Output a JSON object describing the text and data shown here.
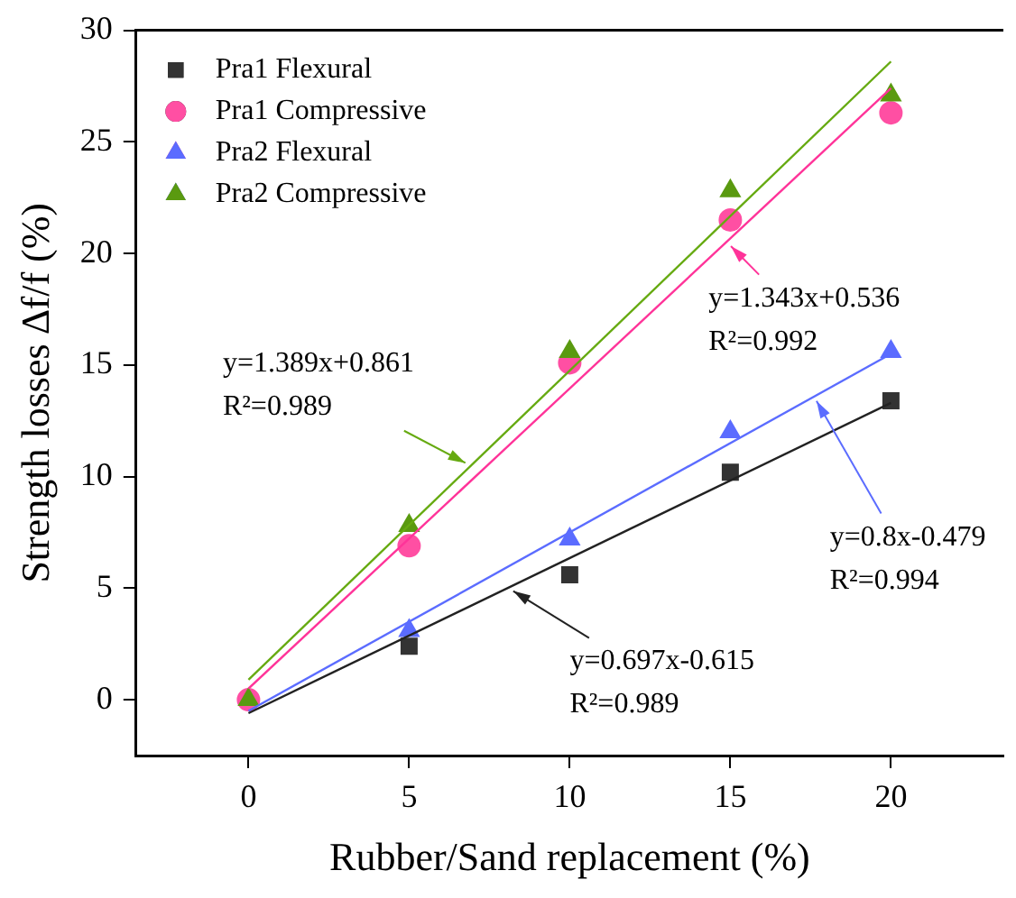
{
  "chart_data": {
    "type": "scatter",
    "xlabel": "Rubber/Sand replacement (%)",
    "ylabel": "Strength losses ∆f/f (%)",
    "xlim": [
      -3.5,
      23.5
    ],
    "xticks": [
      0,
      5,
      10,
      15,
      20
    ],
    "ylim": [
      -2.5,
      30
    ],
    "yticks": [
      0,
      5,
      10,
      15,
      20,
      25,
      30
    ],
    "grid": false,
    "legend": "top left",
    "series": [
      {
        "name": "Pra1 Flexural",
        "marker": "square",
        "color": "#333333",
        "x": [
          5,
          10,
          15,
          20
        ],
        "values": [
          2.4,
          5.6,
          10.2,
          13.4
        ]
      },
      {
        "name": "Pra1 Compressive",
        "marker": "circle",
        "color": "#ff4fa3",
        "x": [
          0,
          5,
          10,
          15,
          20
        ],
        "values": [
          0,
          6.9,
          15.1,
          21.5,
          26.3
        ]
      },
      {
        "name": "Pra2 Flexural",
        "marker": "triangle",
        "color": "#5b6cff",
        "x": [
          5,
          10,
          15,
          20
        ],
        "values": [
          3.1,
          7.2,
          12.0,
          15.6
        ]
      },
      {
        "name": "Pra2 Compressive",
        "marker": "triangle",
        "color": "#5a9a10",
        "x": [
          0,
          5,
          10,
          15,
          20
        ],
        "values": [
          0,
          7.8,
          15.6,
          22.8,
          27.1
        ]
      },
      {
        "type": "line",
        "marker": "none",
        "color": "#ff3399",
        "x": [
          0,
          20
        ],
        "values": [
          0.5,
          27.4
        ]
      },
      {
        "type": "line",
        "marker": "none",
        "color": "#66aa11",
        "x": [
          0,
          20
        ],
        "values": [
          0.9,
          28.6
        ]
      },
      {
        "type": "line",
        "marker": "none",
        "color": "#5b6cff",
        "x": [
          0,
          20
        ],
        "values": [
          -0.5,
          15.5
        ]
      },
      {
        "type": "line",
        "marker": "none",
        "color": "#222222",
        "x": [
          0,
          20
        ],
        "values": [
          -0.6,
          13.3
        ]
      }
    ],
    "annotations": [
      {
        "text": "y=1.343x+0.536\nR²=0.992",
        "x": 14.9,
        "y": 20.5
      },
      {
        "text": "y=1.389x+0.861\nR²=0.989",
        "x": 6.9,
        "y": 10.5
      },
      {
        "text": "y=0.8x-0.479\nR²=0.994",
        "x": 17.6,
        "y": 13.6
      },
      {
        "text": "y=0.697x-0.615\nR²=0.989",
        "x": 8.1,
        "y": 5.0
      }
    ]
  }
}
